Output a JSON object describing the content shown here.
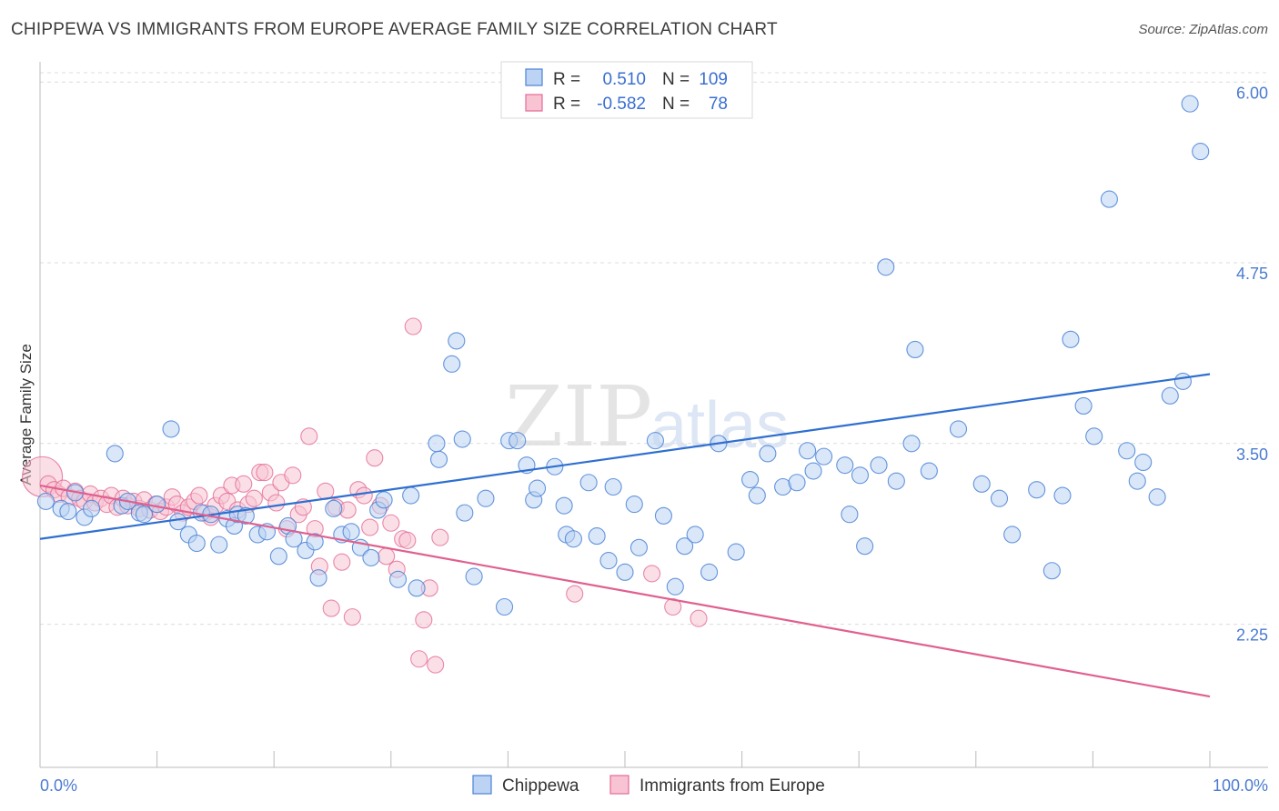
{
  "title": "CHIPPEWA VS IMMIGRANTS FROM EUROPE AVERAGE FAMILY SIZE CORRELATION CHART",
  "source": "Source: ZipAtlas.com",
  "watermark": {
    "zip": "ZIP",
    "atlas": "atlas"
  },
  "legend": {
    "rows": [
      {
        "r_label": "R =",
        "r_value": "0.510",
        "n_label": "N =",
        "n_value": "109"
      },
      {
        "r_label": "R =",
        "r_value": "-0.582",
        "n_label": "N =",
        "n_value": "78"
      }
    ]
  },
  "bottom_legend": [
    "Chippewa",
    "Immigrants from Europe"
  ],
  "chart_data": {
    "type": "scatter",
    "title": "CHIPPEWA VS IMMIGRANTS FROM EUROPE AVERAGE FAMILY SIZE CORRELATION CHART",
    "xlabel": "",
    "ylabel": "Average Family Size",
    "xlim": [
      0,
      100
    ],
    "ylim": [
      1.26,
      6.14
    ],
    "x_tick_labels": [
      "0.0%",
      "100.0%"
    ],
    "y_ticks": [
      2.25,
      3.5,
      4.75,
      6.0
    ],
    "y_tick_labels": [
      "2.25",
      "3.50",
      "4.75",
      "6.00"
    ],
    "grid": "horizontal dashed",
    "legend_position": "top-center",
    "colors": {
      "chippewa": "#4a82d6",
      "europe": "#e46b95",
      "chippewa_fill": "#bcd3f3",
      "europe_fill": "#f8c4d4"
    },
    "series": [
      {
        "name": "Chippewa",
        "trend": {
          "x": [
            0,
            100
          ],
          "y": [
            2.84,
            3.98
          ]
        },
        "points": [
          [
            0.5,
            3.1
          ],
          [
            1.8,
            3.05
          ],
          [
            2.4,
            3.03
          ],
          [
            3.0,
            3.16
          ],
          [
            3.8,
            2.99
          ],
          [
            4.4,
            3.05
          ],
          [
            6.4,
            3.43
          ],
          [
            7.0,
            3.07
          ],
          [
            7.5,
            3.1
          ],
          [
            8.5,
            3.02
          ],
          [
            8.9,
            3.01
          ],
          [
            10.0,
            3.08
          ],
          [
            11.2,
            3.6
          ],
          [
            11.8,
            2.96
          ],
          [
            12.7,
            2.87
          ],
          [
            13.4,
            2.81
          ],
          [
            13.8,
            3.02
          ],
          [
            14.6,
            3.01
          ],
          [
            15.3,
            2.8
          ],
          [
            16.0,
            2.98
          ],
          [
            16.6,
            2.93
          ],
          [
            16.9,
            3.01
          ],
          [
            17.6,
            3.0
          ],
          [
            18.6,
            2.87
          ],
          [
            19.4,
            2.89
          ],
          [
            20.4,
            2.72
          ],
          [
            21.2,
            2.93
          ],
          [
            21.7,
            2.84
          ],
          [
            22.7,
            2.76
          ],
          [
            23.5,
            2.82
          ],
          [
            23.8,
            2.57
          ],
          [
            25.1,
            3.05
          ],
          [
            25.8,
            2.87
          ],
          [
            26.6,
            2.89
          ],
          [
            27.4,
            2.78
          ],
          [
            28.3,
            2.71
          ],
          [
            28.9,
            3.04
          ],
          [
            29.4,
            3.11
          ],
          [
            30.6,
            2.56
          ],
          [
            31.7,
            3.14
          ],
          [
            32.2,
            2.5
          ],
          [
            33.9,
            3.5
          ],
          [
            34.1,
            3.39
          ],
          [
            35.2,
            4.05
          ],
          [
            35.6,
            4.21
          ],
          [
            36.1,
            3.53
          ],
          [
            36.3,
            3.02
          ],
          [
            37.1,
            2.58
          ],
          [
            38.1,
            3.12
          ],
          [
            39.7,
            2.37
          ],
          [
            40.1,
            3.52
          ],
          [
            40.8,
            3.52
          ],
          [
            41.6,
            3.35
          ],
          [
            42.2,
            3.11
          ],
          [
            42.5,
            3.19
          ],
          [
            44.0,
            3.34
          ],
          [
            44.8,
            3.07
          ],
          [
            45.0,
            2.87
          ],
          [
            45.6,
            2.84
          ],
          [
            46.9,
            3.23
          ],
          [
            47.6,
            2.86
          ],
          [
            48.6,
            2.69
          ],
          [
            49.0,
            3.2
          ],
          [
            50.0,
            2.61
          ],
          [
            50.8,
            3.08
          ],
          [
            51.2,
            2.78
          ],
          [
            52.6,
            3.52
          ],
          [
            53.3,
            3.0
          ],
          [
            54.3,
            2.51
          ],
          [
            55.1,
            2.79
          ],
          [
            56.0,
            2.87
          ],
          [
            57.2,
            2.61
          ],
          [
            58.0,
            3.5
          ],
          [
            59.5,
            2.75
          ],
          [
            60.7,
            3.25
          ],
          [
            61.3,
            3.14
          ],
          [
            62.2,
            3.43
          ],
          [
            63.5,
            3.2
          ],
          [
            64.7,
            3.23
          ],
          [
            65.6,
            3.45
          ],
          [
            66.1,
            3.31
          ],
          [
            67.0,
            3.41
          ],
          [
            68.8,
            3.35
          ],
          [
            69.2,
            3.01
          ],
          [
            70.1,
            3.28
          ],
          [
            70.5,
            2.79
          ],
          [
            71.7,
            3.35
          ],
          [
            72.3,
            4.72
          ],
          [
            73.2,
            3.24
          ],
          [
            74.5,
            3.5
          ],
          [
            74.8,
            4.15
          ],
          [
            76.0,
            3.31
          ],
          [
            78.5,
            3.6
          ],
          [
            80.5,
            3.22
          ],
          [
            82.0,
            3.12
          ],
          [
            83.1,
            2.87
          ],
          [
            85.2,
            3.18
          ],
          [
            86.5,
            2.62
          ],
          [
            87.4,
            3.14
          ],
          [
            88.1,
            4.22
          ],
          [
            89.2,
            3.76
          ],
          [
            90.1,
            3.55
          ],
          [
            91.4,
            5.19
          ],
          [
            92.9,
            3.45
          ],
          [
            93.8,
            3.24
          ],
          [
            94.3,
            3.37
          ],
          [
            95.5,
            3.13
          ],
          [
            96.6,
            3.83
          ],
          [
            97.7,
            3.93
          ],
          [
            98.3,
            5.85
          ],
          [
            99.2,
            5.52
          ]
        ]
      },
      {
        "name": "Immigrants from Europe",
        "trend": {
          "x": [
            0,
            100
          ],
          "y": [
            3.21,
            1.75
          ]
        },
        "points": [
          [
            0.2,
            3.27
          ],
          [
            0.7,
            3.22
          ],
          [
            1.2,
            3.18
          ],
          [
            1.6,
            3.15
          ],
          [
            2.0,
            3.19
          ],
          [
            2.5,
            3.13
          ],
          [
            3.0,
            3.17
          ],
          [
            3.4,
            3.12
          ],
          [
            3.8,
            3.1
          ],
          [
            4.3,
            3.15
          ],
          [
            4.7,
            3.09
          ],
          [
            5.2,
            3.12
          ],
          [
            5.7,
            3.08
          ],
          [
            6.1,
            3.14
          ],
          [
            6.6,
            3.06
          ],
          [
            7.1,
            3.12
          ],
          [
            7.5,
            3.07
          ],
          [
            8.0,
            3.1
          ],
          [
            8.5,
            3.05
          ],
          [
            8.9,
            3.11
          ],
          [
            9.4,
            3.04
          ],
          [
            9.9,
            3.08
          ],
          [
            10.3,
            3.03
          ],
          [
            10.8,
            3.06
          ],
          [
            11.3,
            3.13
          ],
          [
            11.7,
            3.08
          ],
          [
            12.2,
            3.02
          ],
          [
            12.7,
            3.06
          ],
          [
            13.2,
            3.1
          ],
          [
            13.6,
            3.14
          ],
          [
            14.1,
            3.02
          ],
          [
            14.6,
            2.99
          ],
          [
            15.0,
            3.07
          ],
          [
            15.5,
            3.14
          ],
          [
            16.0,
            3.1
          ],
          [
            16.4,
            3.21
          ],
          [
            16.9,
            3.04
          ],
          [
            17.4,
            3.22
          ],
          [
            17.8,
            3.08
          ],
          [
            18.3,
            3.12
          ],
          [
            18.8,
            3.3
          ],
          [
            19.2,
            3.3
          ],
          [
            19.7,
            3.16
          ],
          [
            20.2,
            3.09
          ],
          [
            20.6,
            3.23
          ],
          [
            21.1,
            2.91
          ],
          [
            21.6,
            3.28
          ],
          [
            22.1,
            3.01
          ],
          [
            22.5,
            3.06
          ],
          [
            23.0,
            3.55
          ],
          [
            23.5,
            2.91
          ],
          [
            23.9,
            2.65
          ],
          [
            24.4,
            3.17
          ],
          [
            24.9,
            2.36
          ],
          [
            25.3,
            3.06
          ],
          [
            25.8,
            2.68
          ],
          [
            26.3,
            3.04
          ],
          [
            26.7,
            2.3
          ],
          [
            27.2,
            3.18
          ],
          [
            27.7,
            3.14
          ],
          [
            28.2,
            2.92
          ],
          [
            28.6,
            3.4
          ],
          [
            29.1,
            3.07
          ],
          [
            29.6,
            2.72
          ],
          [
            30.0,
            2.95
          ],
          [
            30.5,
            2.63
          ],
          [
            31.0,
            2.84
          ],
          [
            31.4,
            2.83
          ],
          [
            31.9,
            4.31
          ],
          [
            32.4,
            2.01
          ],
          [
            32.8,
            2.28
          ],
          [
            33.3,
            2.5
          ],
          [
            33.8,
            1.97
          ],
          [
            34.2,
            2.85
          ],
          [
            45.7,
            2.46
          ],
          [
            52.3,
            2.6
          ],
          [
            54.1,
            2.37
          ],
          [
            56.3,
            2.29
          ]
        ]
      }
    ]
  }
}
